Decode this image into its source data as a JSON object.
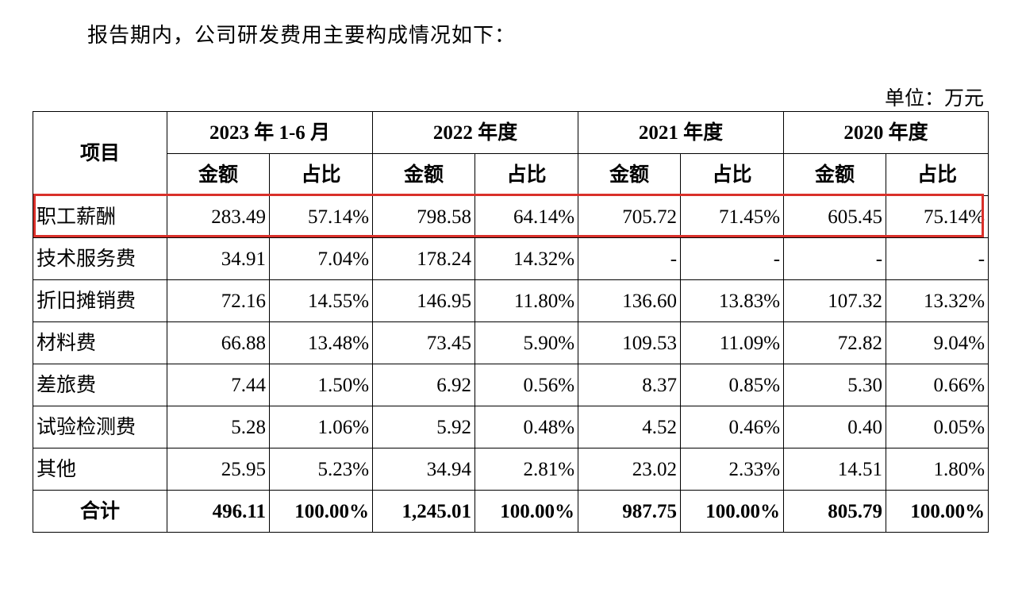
{
  "intro": "报告期内，公司研发费用主要构成情况如下：",
  "unit": "单位：万元",
  "table": {
    "item_header": "项目",
    "periods": [
      "2023 年 1-6 月",
      "2022 年度",
      "2021 年度",
      "2020 年度"
    ],
    "sub_headers": [
      "金额",
      "占比",
      "金额",
      "占比",
      "金额",
      "占比",
      "金额",
      "占比"
    ],
    "rows": [
      {
        "label": "职工薪酬",
        "cells": [
          "283.49",
          "57.14%",
          "798.58",
          "64.14%",
          "705.72",
          "71.45%",
          "605.45",
          "75.14%"
        ]
      },
      {
        "label": "技术服务费",
        "cells": [
          "34.91",
          "7.04%",
          "178.24",
          "14.32%",
          "-",
          "-",
          "-",
          "-"
        ]
      },
      {
        "label": "折旧摊销费",
        "cells": [
          "72.16",
          "14.55%",
          "146.95",
          "11.80%",
          "136.60",
          "13.83%",
          "107.32",
          "13.32%"
        ]
      },
      {
        "label": "材料费",
        "cells": [
          "66.88",
          "13.48%",
          "73.45",
          "5.90%",
          "109.53",
          "11.09%",
          "72.82",
          "9.04%"
        ]
      },
      {
        "label": "差旅费",
        "cells": [
          "7.44",
          "1.50%",
          "6.92",
          "0.56%",
          "8.37",
          "0.85%",
          "5.30",
          "0.66%"
        ]
      },
      {
        "label": "试验检测费",
        "cells": [
          "5.28",
          "1.06%",
          "5.92",
          "0.48%",
          "4.52",
          "0.46%",
          "0.40",
          "0.05%"
        ]
      },
      {
        "label": "其他",
        "cells": [
          "25.95",
          "5.23%",
          "34.94",
          "2.81%",
          "23.02",
          "2.33%",
          "14.51",
          "1.80%"
        ]
      }
    ],
    "total": {
      "label": "合计",
      "cells": [
        "496.11",
        "100.00%",
        "1,245.01",
        "100.00%",
        "987.75",
        "100.00%",
        "805.79",
        "100.00%"
      ]
    }
  },
  "highlight_color": "#d9302a"
}
